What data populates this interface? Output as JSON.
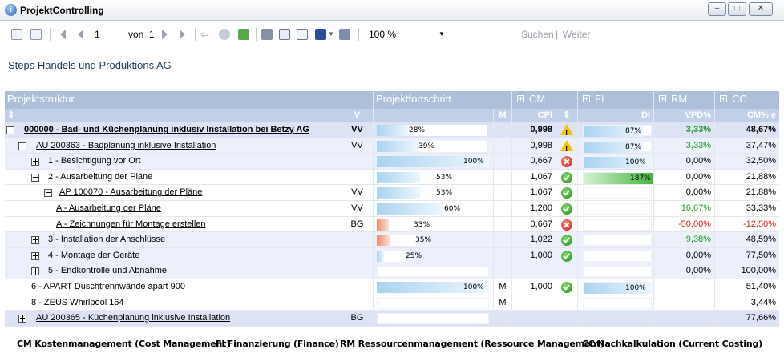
{
  "window": {
    "title": "ProjektControlling",
    "minimize": "–",
    "maximize": "□",
    "close": "✕"
  },
  "toolbar": {
    "page_current": "1",
    "page_of": "von",
    "page_total": "1",
    "zoom": "100 %",
    "search": "Suchen",
    "separator": "|",
    "next": "Weiter"
  },
  "company": "Steps Handels und Produktions AG",
  "header": {
    "projektstruktur": "Projektstruktur",
    "fortschritt": "Projektfortschritt",
    "cm": "CM",
    "fi": "FI",
    "rm": "RM",
    "cc": "CC",
    "sort_struct": "⇕",
    "v_col": "V",
    "m_col": "M",
    "cpi": "CPI",
    "cpi_sort": "⇕",
    "di": "DI",
    "vpd": "VPD%",
    "cme": "CM% e"
  },
  "rows": [
    {
      "name": "000000 - Bad- und Küchenplanung inklusiv Installation bei Betzy AG",
      "v": "VV",
      "m": "",
      "progress": 28,
      "progress_label": "28%",
      "cpi": "0,998",
      "cpi_status": "warn",
      "di": 87,
      "di_label": "87%",
      "vpd": "3,33%",
      "cc": "48,67%"
    },
    {
      "name": "AU 200363 - Badplanung inklusive Installation",
      "v": "VV",
      "m": "",
      "progress": 39,
      "progress_label": "39%",
      "cpi": "0,998",
      "cpi_status": "warn",
      "di": 87,
      "di_label": "87%",
      "vpd": "3,33%",
      "cc": "37,47%"
    },
    {
      "name": "1 - Besichtigung vor Ort",
      "v": "",
      "m": "",
      "progress": 100,
      "progress_label": "100%",
      "cpi": "0,667",
      "cpi_status": "err",
      "di": 100,
      "di_label": "100%",
      "vpd": "0,00%",
      "cc": "32,50%"
    },
    {
      "name": "2 - Ausarbeitung der Pläne",
      "v": "",
      "m": "",
      "progress": 53,
      "progress_label": "53%",
      "cpi": "1,067",
      "cpi_status": "ok",
      "di": 187,
      "di_label": "187%",
      "vpd": "0,00%",
      "cc": "21,88%"
    },
    {
      "name": "AP 100070 - Ausarbeitung der Pläne",
      "v": "VV",
      "m": "",
      "progress": 53,
      "progress_label": "53%",
      "cpi": "1,067",
      "cpi_status": "ok",
      "di": null,
      "di_label": "",
      "vpd": "0,00%",
      "cc": "21,88%"
    },
    {
      "name": "A - Ausarbeitung der Pläne",
      "v": "VV",
      "m": "",
      "progress": 60,
      "progress_label": "60%",
      "cpi": "1,200",
      "cpi_status": "ok",
      "di": null,
      "di_label": "",
      "vpd": "16,67%",
      "cc": "33,33%"
    },
    {
      "name": "A - Zeichnungen für Montage erstellen",
      "v": "BG",
      "m": "",
      "progress": 33,
      "progress_label": "33%",
      "cpi": "0,667",
      "cpi_status": "err",
      "di": null,
      "di_label": "",
      "vpd": "-50,00%",
      "cc": "-12,50%"
    },
    {
      "name": "3 - Installation der Anschlüsse",
      "v": "",
      "m": "",
      "progress": 35,
      "progress_label": "35%",
      "cpi": "1,022",
      "cpi_status": "ok",
      "di": null,
      "di_label": "",
      "vpd": "9,38%",
      "cc": "48,59%"
    },
    {
      "name": "4 - Montage der Geräte",
      "v": "",
      "m": "",
      "progress": 25,
      "progress_label": "25%",
      "cpi": "1,000",
      "cpi_status": "ok",
      "di": null,
      "di_label": "",
      "vpd": "0,00%",
      "cc": "77,50%"
    },
    {
      "name": "5 - Endkontrolle und Abnahme",
      "v": "",
      "m": "",
      "progress": null,
      "progress_label": "",
      "cpi": "",
      "cpi_status": "",
      "di": null,
      "di_label": "",
      "vpd": "0,00%",
      "cc": "100,00%"
    },
    {
      "name": "6 - APART Duschtrennwände apart 900",
      "v": "",
      "m": "M",
      "progress": 100,
      "progress_label": "100%",
      "cpi": "1,000",
      "cpi_status": "ok",
      "di": 100,
      "di_label": "100%",
      "vpd": "",
      "cc": "51,40%"
    },
    {
      "name": "8 - ZEUS Whirlpool 164",
      "v": "",
      "m": "M",
      "progress": null,
      "progress_label": "",
      "cpi": "",
      "cpi_status": "",
      "di": null,
      "di_label": "",
      "vpd": "",
      "cc": "3,44%"
    },
    {
      "name": "AU 200365 - Küchenplanung inklusive Installation",
      "v": "BG",
      "m": "",
      "progress": null,
      "progress_label": "",
      "cpi": "",
      "cpi_status": "",
      "di": null,
      "di_label": "",
      "vpd": "",
      "cc": "77,66%"
    }
  ],
  "legend": {
    "cm": "CM  Kostenmanagement (Cost Management)",
    "fi": "FI  Finanzierung (Finance)",
    "rm": "RM  Ressourcenmanagement (Ressource Management)",
    "cc": "CC  Nachkalkulation (Current Costing)"
  },
  "colors": {
    "header": "#aebfda",
    "subheader": "#c1d0e6",
    "positive": "#1f9d1f",
    "negative": "#e02020",
    "progress_blue": "#bcdcf3",
    "progress_red": "#f4a488",
    "di_green": "#56c04f"
  }
}
